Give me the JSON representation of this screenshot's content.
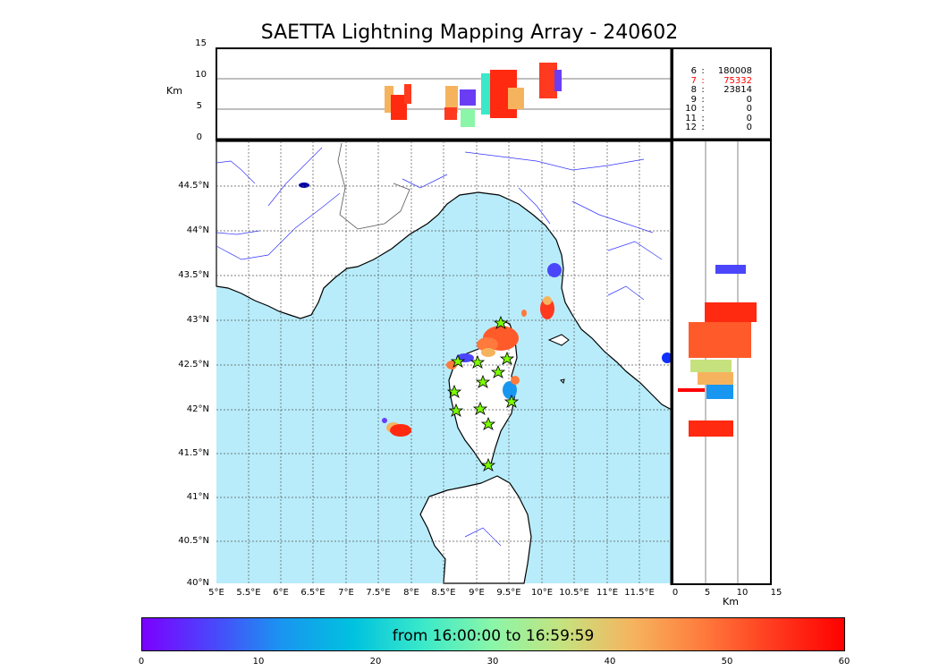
{
  "title": "SAETTA Lightning Mapping Array - 240602",
  "top_panel": {
    "ylabel": "Km",
    "yticks": [
      "15",
      "10",
      "5",
      "0"
    ]
  },
  "map_panel": {
    "lat_labels": [
      "44.5°N",
      "44°N",
      "43.5°N",
      "43°N",
      "42.5°N",
      "42°N",
      "41.5°N",
      "41°N",
      "40.5°N",
      "40°N"
    ],
    "lon_labels": [
      "5°E",
      "5.5°E",
      "6°E",
      "6.5°E",
      "7°E",
      "7.5°E",
      "8°E",
      "8.5°E",
      "9°E",
      "9.5°E",
      "10°E",
      "10.5°E",
      "11°E",
      "11.5°E"
    ]
  },
  "side_panel": {
    "xticks": [
      "0",
      "5",
      "10",
      "15"
    ],
    "xlabel": "Km"
  },
  "source_counts": [
    {
      "level": "6",
      "count": "180008",
      "color": "#000000"
    },
    {
      "level": "7",
      "count": "75332",
      "color": "#ff0000"
    },
    {
      "level": "8",
      "count": "23814",
      "color": "#000000"
    },
    {
      "level": "9",
      "count": "0",
      "color": "#000000"
    },
    {
      "level": "10",
      "count": "0",
      "color": "#000000"
    },
    {
      "level": "11",
      "count": "0",
      "color": "#000000"
    },
    {
      "level": "12",
      "count": "0",
      "color": "#000000"
    }
  ],
  "colorbar": {
    "label": "from 16:00:00 to 16:59:59",
    "ticks": [
      "0",
      "10",
      "20",
      "30",
      "40",
      "50",
      "60"
    ]
  },
  "colors": {
    "sea": "#b8ecfa",
    "land": "#ffffff",
    "rivers": "#3333ff",
    "stations": "#7cfc00"
  }
}
